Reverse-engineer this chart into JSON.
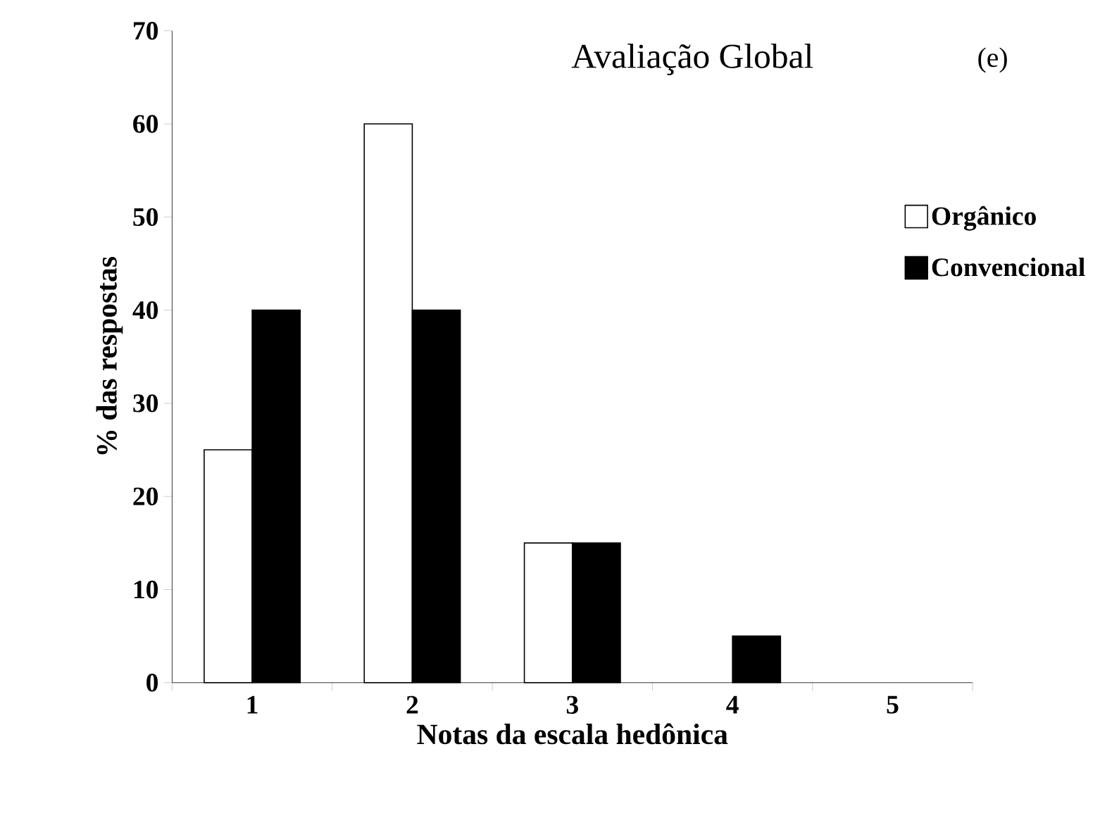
{
  "chart_data": {
    "type": "bar",
    "title": "Avaliação Global",
    "annotations": [
      "(e)"
    ],
    "xlabel": "Notas da escala hedônica",
    "ylabel": "% das respostas",
    "categories": [
      "1",
      "2",
      "3",
      "4",
      "5"
    ],
    "series": [
      {
        "name": "Orgânico",
        "color": "#ffffff",
        "values": [
          25,
          60,
          15,
          0,
          0
        ]
      },
      {
        "name": "Convencional",
        "color": "#000000",
        "values": [
          40,
          40,
          15,
          5,
          0
        ]
      }
    ],
    "ylim": [
      0,
      70
    ],
    "yticks": [
      0,
      10,
      20,
      30,
      40,
      50,
      60,
      70
    ],
    "legend": "right"
  }
}
